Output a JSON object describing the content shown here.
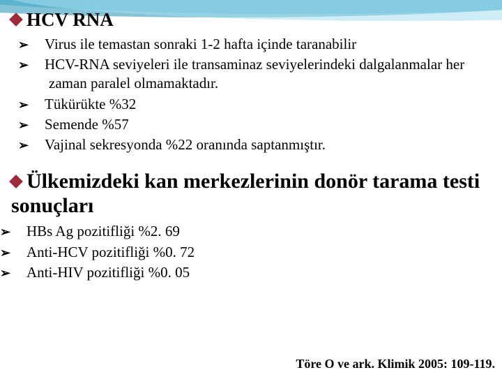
{
  "banner": {
    "wave1_color": "#5bc6e8",
    "wave2_color": "#1f8fb5",
    "wave3_color": "#a8dff0",
    "background": "#ffffff"
  },
  "bullet_colors": {
    "diamond": "#9e2b3a",
    "arrow": "#000000"
  },
  "typography": {
    "h1_fontsize": 27,
    "h2_fontsize": 30,
    "li_fontsize": 21,
    "citation_fontsize": 18,
    "font_family": "Palatino Linotype"
  },
  "section1": {
    "title": "HCV RNA",
    "items": [
      "Virus ile temastan sonraki 1-2 hafta içinde taranabilir",
      "HCV-RNA seviyeleri ile transaminaz seviyelerindeki dalgalanmalar her zaman paralel olmamaktadır.",
      "Tükürükte %32",
      "Semende %57",
      "Vajinal sekresyonda %22 oranında saptanmıştır."
    ]
  },
  "section2": {
    "title": "Ülkemizdeki kan merkezlerinin donör tarama testi sonuçları",
    "items": [
      "HBs Ag pozitifliği %2. 69",
      "Anti-HCV pozitifliği %0. 72",
      "Anti-HIV pozitifliği %0. 05"
    ]
  },
  "citation": "Töre O ve ark. Klimik 2005: 109-119."
}
